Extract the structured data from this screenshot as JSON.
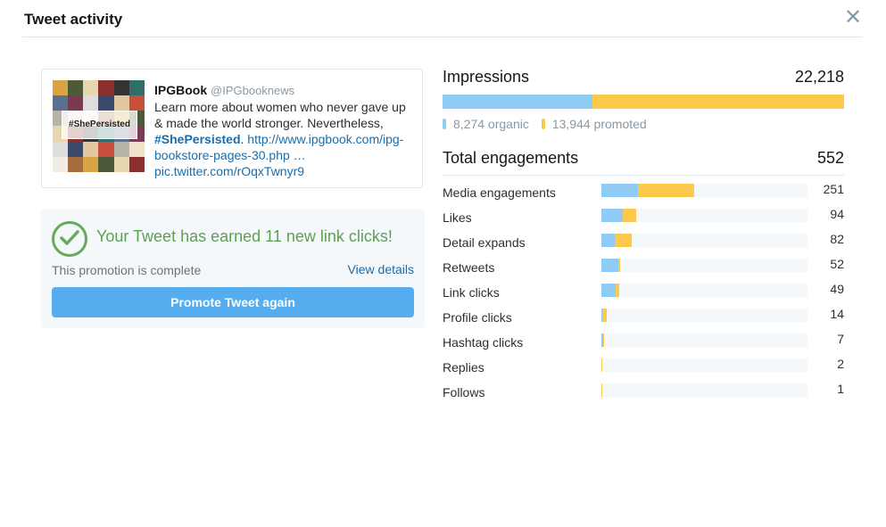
{
  "modal": {
    "title": "Tweet activity",
    "close_glyph": "✕"
  },
  "tweet": {
    "name": "IPGBook",
    "handle": "@IPGbooknews",
    "text_before": "Learn more about women who never gave up & made the world stronger. Nevertheless, ",
    "hashtag": "#ShePersisted",
    "text_after": ". ",
    "link": "http://www.ipgbook.com/ipg-bookstore-pages-30.php …",
    "pic_link": "pic.twitter.com/rOqxTwnyr9",
    "thumbnail_tag": "#ShePersisted"
  },
  "promotion": {
    "headline": "Your Tweet has earned 11 new link clicks!",
    "status": "This promotion is complete",
    "view_details": "View details",
    "button": "Promote Tweet again"
  },
  "impressions": {
    "label": "Impressions",
    "total": "22,218",
    "organic_value": 8274,
    "promoted_value": 13944,
    "organic_label": "8,274 organic",
    "promoted_label": "13,944 promoted"
  },
  "engagements": {
    "label": "Total engagements",
    "total": "552",
    "max_scale": 560,
    "rows": [
      {
        "label": "Media engagements",
        "value": "251",
        "organic": 100,
        "promoted": 151
      },
      {
        "label": "Likes",
        "value": "94",
        "organic": 57,
        "promoted": 37
      },
      {
        "label": "Detail expands",
        "value": "82",
        "organic": 36,
        "promoted": 46
      },
      {
        "label": "Retweets",
        "value": "52",
        "organic": 45,
        "promoted": 7
      },
      {
        "label": "Link clicks",
        "value": "49",
        "organic": 38,
        "promoted": 11
      },
      {
        "label": "Profile clicks",
        "value": "14",
        "organic": 3,
        "promoted": 11
      },
      {
        "label": "Hashtag clicks",
        "value": "7",
        "organic": 4,
        "promoted": 3
      },
      {
        "label": "Replies",
        "value": "2",
        "organic": 1,
        "promoted": 1
      },
      {
        "label": "Follows",
        "value": "1",
        "organic": 0,
        "promoted": 1
      }
    ]
  },
  "colors": {
    "organic": "#8ecbf5",
    "promoted": "#fcc94d",
    "success": "#67a95c",
    "link": "#1b6ca8",
    "button": "#55acee"
  }
}
